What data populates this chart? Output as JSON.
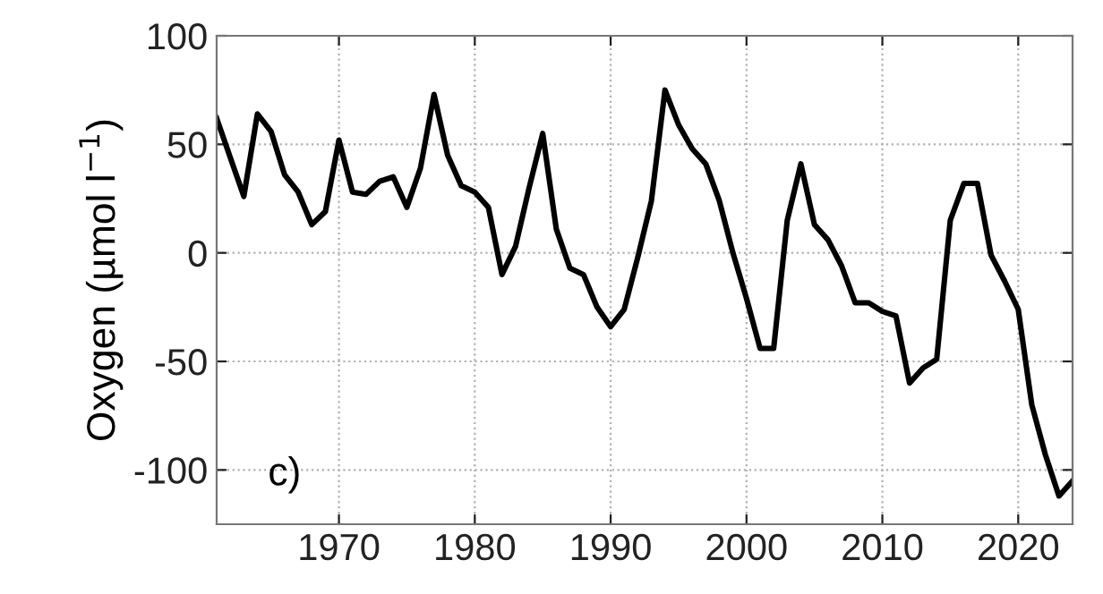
{
  "chart_data": {
    "type": "line",
    "ylabel": "Oxygen (µmol l$^{−1}$)",
    "annotations": [
      "c)"
    ],
    "x": [
      1961,
      1962,
      1963,
      1964,
      1965,
      1966,
      1967,
      1968,
      1969,
      1970,
      1971,
      1972,
      1973,
      1974,
      1975,
      1976,
      1977,
      1978,
      1979,
      1980,
      1981,
      1982,
      1983,
      1984,
      1985,
      1986,
      1987,
      1988,
      1989,
      1990,
      1991,
      1992,
      1993,
      1994,
      1995,
      1996,
      1997,
      1998,
      1999,
      2000,
      2001,
      2002,
      2003,
      2004,
      2005,
      2006,
      2007,
      2008,
      2009,
      2010,
      2011,
      2012,
      2013,
      2014,
      2015,
      2016,
      2017,
      2018,
      2019,
      2020,
      2021,
      2022,
      2023,
      2024
    ],
    "series": [
      {
        "color": "#000000",
        "values": [
          62,
          44,
          26,
          64,
          56,
          36,
          28,
          13,
          19,
          52,
          28,
          27,
          33,
          35,
          21,
          39,
          73,
          45,
          31,
          28,
          21,
          -10,
          3,
          30,
          55,
          11,
          -7,
          -10,
          -25,
          -34,
          -26,
          -2,
          24,
          75,
          59,
          48,
          41,
          24,
          0,
          -21,
          -44,
          -44,
          15,
          41,
          13,
          6,
          -6,
          -23,
          -23,
          -27,
          -29,
          -60,
          -53,
          -49,
          15,
          32,
          32,
          -1,
          -13,
          -26,
          -70,
          -93,
          -112,
          -105
        ]
      }
    ],
    "xlim": [
      1961,
      2024
    ],
    "ylim": [
      -125,
      100
    ],
    "xticks": [
      1970,
      1980,
      1990,
      2000,
      2010,
      2020
    ],
    "yticks": [
      {
        "value": -100,
        "label": "-100"
      },
      {
        "value": -50,
        "label": "-50"
      },
      0,
      50,
      100
    ],
    "grid": true,
    "marker": "none",
    "line_style": "solid"
  }
}
